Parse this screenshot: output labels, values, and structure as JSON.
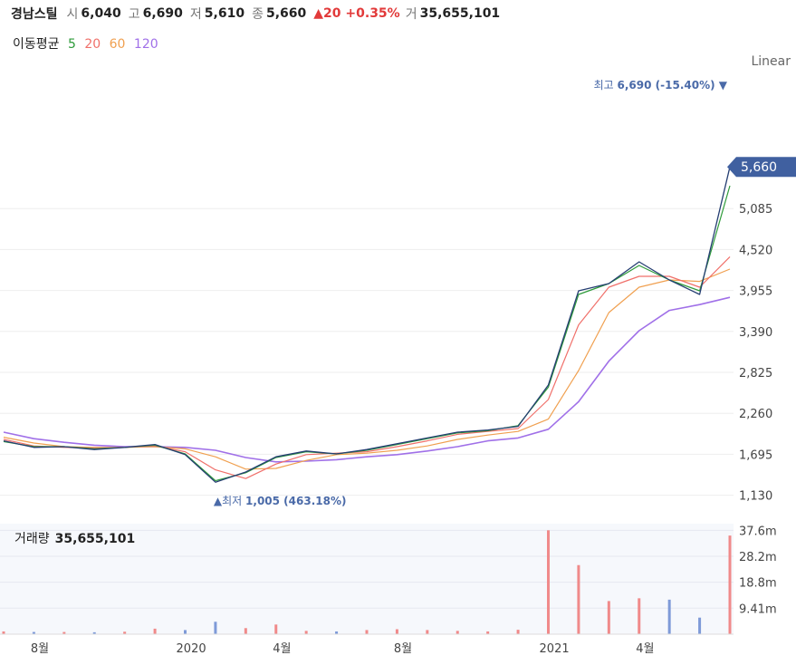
{
  "header": {
    "name": "경남스틸",
    "open_label": "시",
    "open": "6,040",
    "high_label": "고",
    "high": "6,690",
    "low_label": "저",
    "low": "5,610",
    "close_label": "종",
    "close": "5,660",
    "change": "▲20 +0.35%",
    "vol_label": "거",
    "volume": "35,655,101"
  },
  "moving_average": {
    "label": "이동평균",
    "periods": [
      {
        "text": "5",
        "color": "#2e9b3a"
      },
      {
        "text": "20",
        "color": "#f0706a"
      },
      {
        "text": "60",
        "color": "#f0a050"
      },
      {
        "text": "120",
        "color": "#a070e8"
      }
    ]
  },
  "scale_mode": "Linear",
  "price_axis": [
    "5,085",
    "4,520",
    "3,955",
    "3,390",
    "2,825",
    "2,260",
    "1,695",
    "1,130"
  ],
  "last_price_tag": "5,660",
  "annotations": {
    "high": {
      "prefix": "최고",
      "value": "6,690 (-15.40%)"
    },
    "low": {
      "prefix": "최저",
      "value": "1,005 (463.18%)"
    }
  },
  "volume_panel": {
    "label": "거래량",
    "value": "35,655,101",
    "axis": [
      "37.6m",
      "28.2m",
      "18.8m",
      "9.41m"
    ]
  },
  "time_axis": [
    "8월",
    "2020",
    "4월",
    "8월",
    "2021",
    "4월"
  ],
  "colors": {
    "price": "#253e72",
    "tag": "#4060a0",
    "up": "#e23a3a"
  },
  "chart_data": {
    "type": "line",
    "ylim": [
      900,
      6900
    ],
    "x": [
      "2019-08",
      "2019-09",
      "2019-10",
      "2019-11",
      "2019-12",
      "2020-01",
      "2020-02",
      "2020-03",
      "2020-04",
      "2020-05",
      "2020-06",
      "2020-07",
      "2020-08",
      "2020-09",
      "2020-10",
      "2020-11",
      "2020-12",
      "2021-01",
      "2021-02",
      "2021-03",
      "2021-04",
      "2021-05",
      "2021-06",
      "2021-07",
      "2021-08"
    ],
    "series": [
      {
        "name": "종가",
        "values": [
          1880,
          1790,
          1800,
          1760,
          1790,
          1830,
          1690,
          1310,
          1450,
          1660,
          1740,
          1700,
          1760,
          1840,
          1920,
          2000,
          2030,
          2080,
          2650,
          3950,
          4050,
          4350,
          4100,
          3900,
          5660
        ]
      },
      {
        "name": "5",
        "values": [
          1870,
          1800,
          1800,
          1770,
          1790,
          1820,
          1700,
          1330,
          1440,
          1650,
          1730,
          1700,
          1750,
          1830,
          1910,
          1990,
          2020,
          2090,
          2620,
          3900,
          4050,
          4300,
          4100,
          3950,
          5400
        ]
      },
      {
        "name": "20",
        "values": [
          1900,
          1810,
          1790,
          1780,
          1790,
          1810,
          1730,
          1480,
          1360,
          1560,
          1690,
          1710,
          1730,
          1800,
          1880,
          1970,
          2010,
          2050,
          2450,
          3480,
          4000,
          4150,
          4150,
          4000,
          4420
        ]
      },
      {
        "name": "60",
        "values": [
          1930,
          1850,
          1800,
          1790,
          1790,
          1800,
          1770,
          1660,
          1490,
          1500,
          1610,
          1690,
          1710,
          1750,
          1810,
          1900,
          1960,
          2010,
          2180,
          2850,
          3650,
          4000,
          4100,
          4080,
          4250
        ]
      },
      {
        "name": "120",
        "values": [
          2000,
          1910,
          1860,
          1820,
          1800,
          1800,
          1790,
          1750,
          1650,
          1590,
          1600,
          1620,
          1660,
          1690,
          1740,
          1800,
          1880,
          1920,
          2040,
          2420,
          2980,
          3400,
          3680,
          3760,
          3860
        ]
      }
    ],
    "volume_m": [
      1.0,
      0.8,
      0.8,
      0.7,
      0.9,
      2.0,
      1.5,
      4.5,
      2.2,
      3.5,
      1.2,
      1.0,
      1.5,
      1.8,
      1.5,
      1.2,
      1.0,
      1.6,
      37.6,
      25.0,
      12.0,
      13.0,
      12.5,
      6.0,
      35.7
    ]
  }
}
